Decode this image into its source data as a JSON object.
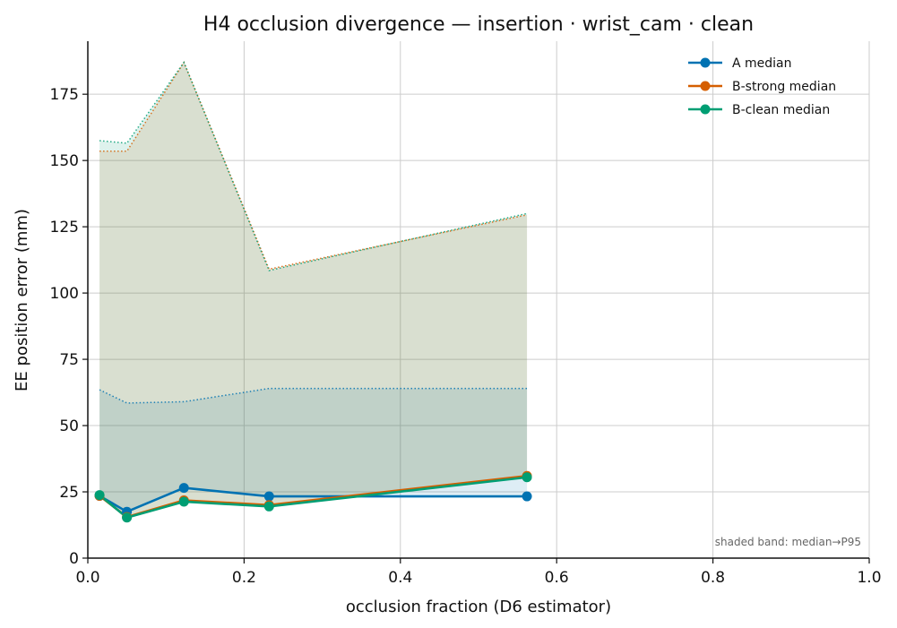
{
  "chart_data": {
    "type": "line",
    "title": "H4 occlusion divergence — insertion · wrist_cam · clean",
    "xlabel": "occlusion fraction (D6 estimator)",
    "ylabel": "EE position error (mm)",
    "xlim": [
      0,
      1
    ],
    "ylim": [
      0,
      195
    ],
    "xticks": [
      "0.0",
      "0.2",
      "0.4",
      "0.6",
      "0.8",
      "1.0"
    ],
    "yticks": [
      "0",
      "25",
      "50",
      "75",
      "100",
      "125",
      "150",
      "175"
    ],
    "grid": true,
    "legend_position": "top-right",
    "annotation": "shaded band: median→P95",
    "x": [
      0.015,
      0.05,
      0.123,
      0.232,
      0.562
    ],
    "series": [
      {
        "name": "A median",
        "color": "#0072B2",
        "values": [
          23.5,
          17.5,
          26.5,
          23.3,
          23.3
        ],
        "p95": [
          63.5,
          58.5,
          59.0,
          64.0,
          64.0
        ]
      },
      {
        "name": "B-strong median",
        "color": "#D55E00",
        "values": [
          23.5,
          15.5,
          21.8,
          20.0,
          31.0
        ],
        "p95": [
          153.5,
          153.5,
          187.0,
          109.0,
          129.5
        ]
      },
      {
        "name": "B-clean median",
        "color": "#009E73",
        "values": [
          23.8,
          15.3,
          21.3,
          19.5,
          30.5
        ],
        "p95": [
          157.5,
          156.5,
          187.0,
          108.5,
          130.0
        ]
      }
    ]
  }
}
